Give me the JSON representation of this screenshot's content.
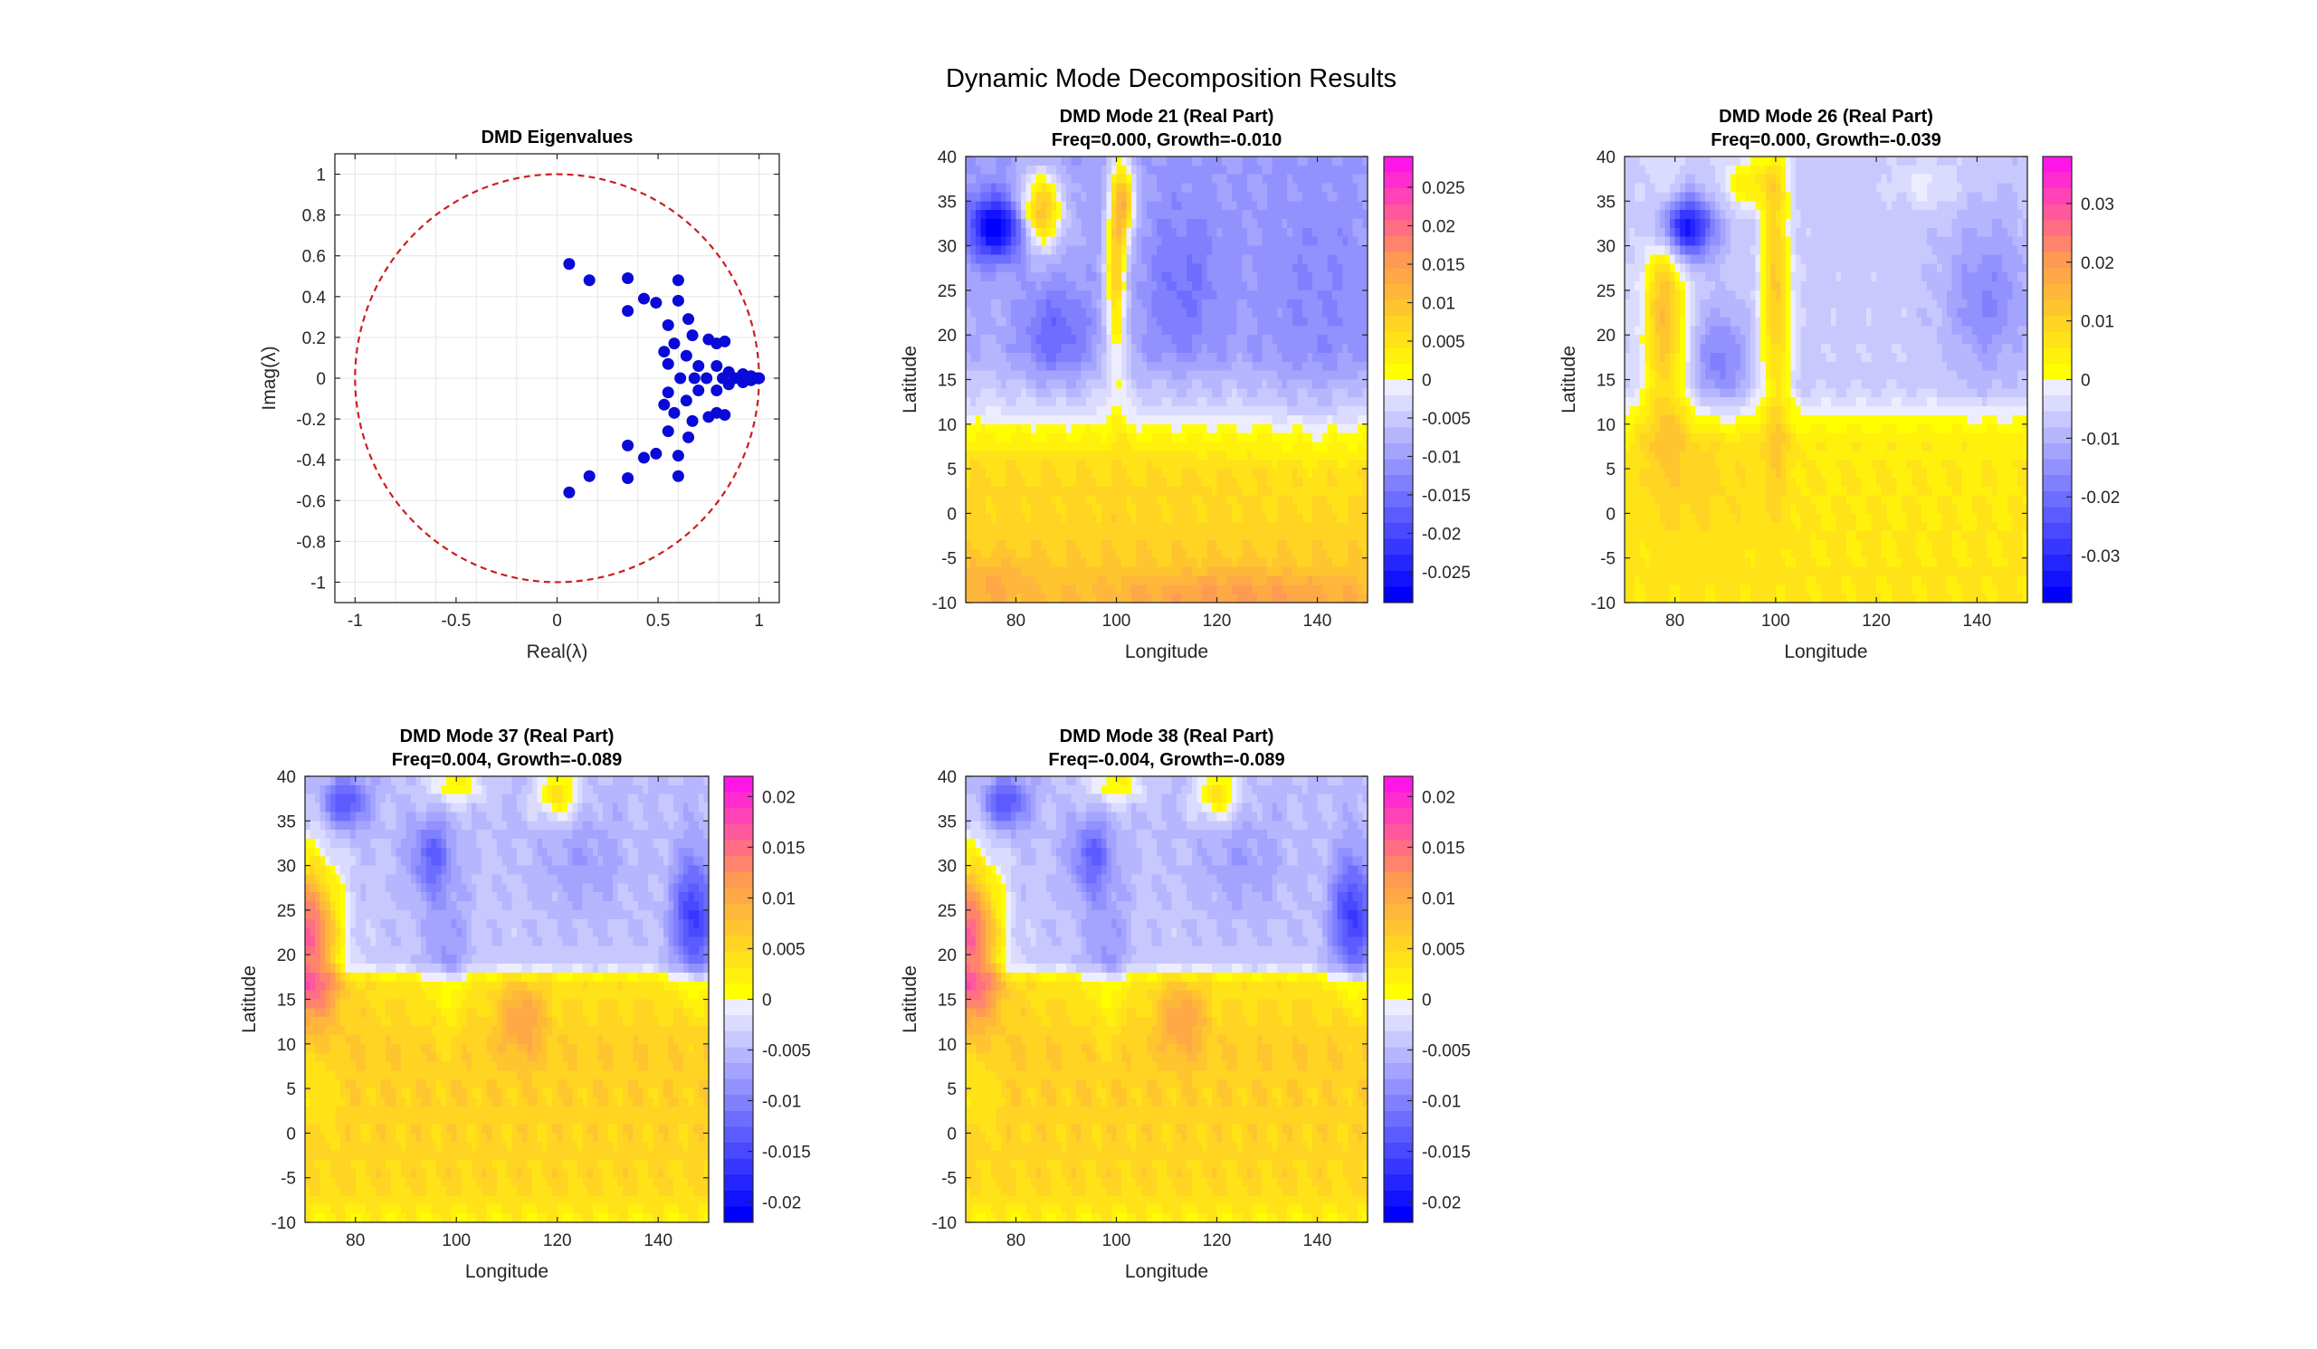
{
  "figure": {
    "suptitle": "Dynamic Mode Decomposition Results"
  },
  "colors": {
    "marker": "#0a0ad8",
    "unit_circle": "#cc1f1f",
    "cmap_neg_end": "#0000ff",
    "cmap_zero": "#ffffff",
    "cmap_pos_start": "#ffff00",
    "cmap_pos_mid": "#ff9a52",
    "cmap_pos_end": "#ff00ff"
  },
  "chart_data": [
    {
      "type": "scatter",
      "title": "DMD Eigenvalues",
      "xlabel": "Real(λ)",
      "ylabel": "Imag(λ)",
      "xlim": [
        -1.1,
        1.1
      ],
      "ylim": [
        -1.1,
        1.1
      ],
      "xticks": [
        -1,
        -0.5,
        0,
        0.5,
        1
      ],
      "yticks": [
        -1,
        -0.8,
        -0.6,
        -0.4,
        -0.2,
        0,
        0.2,
        0.4,
        0.6,
        0.8,
        1
      ],
      "grid": true,
      "unit_circle": true,
      "points": [
        [
          0.06,
          0.56
        ],
        [
          0.06,
          -0.56
        ],
        [
          0.16,
          0.48
        ],
        [
          0.16,
          -0.48
        ],
        [
          0.35,
          0.49
        ],
        [
          0.35,
          -0.49
        ],
        [
          0.35,
          0.33
        ],
        [
          0.35,
          -0.33
        ],
        [
          0.43,
          0.39
        ],
        [
          0.43,
          -0.39
        ],
        [
          0.49,
          0.37
        ],
        [
          0.49,
          -0.37
        ],
        [
          0.6,
          0.48
        ],
        [
          0.6,
          -0.48
        ],
        [
          0.6,
          0.38
        ],
        [
          0.6,
          -0.38
        ],
        [
          0.55,
          0.26
        ],
        [
          0.55,
          -0.26
        ],
        [
          0.65,
          0.29
        ],
        [
          0.65,
          -0.29
        ],
        [
          0.58,
          0.17
        ],
        [
          0.58,
          -0.17
        ],
        [
          0.67,
          0.21
        ],
        [
          0.67,
          -0.21
        ],
        [
          0.53,
          0.13
        ],
        [
          0.53,
          -0.13
        ],
        [
          0.64,
          0.11
        ],
        [
          0.64,
          -0.11
        ],
        [
          0.55,
          0.07
        ],
        [
          0.55,
          -0.07
        ],
        [
          0.7,
          0.06
        ],
        [
          0.7,
          -0.06
        ],
        [
          0.75,
          0.19
        ],
        [
          0.75,
          -0.19
        ],
        [
          0.79,
          0.17
        ],
        [
          0.79,
          -0.17
        ],
        [
          0.83,
          0.18
        ],
        [
          0.83,
          -0.18
        ],
        [
          0.79,
          0.06
        ],
        [
          0.79,
          -0.06
        ],
        [
          0.85,
          0.03
        ],
        [
          0.85,
          -0.03
        ],
        [
          0.92,
          0.02
        ],
        [
          0.92,
          -0.02
        ],
        [
          0.96,
          0.01
        ],
        [
          0.96,
          -0.01
        ],
        [
          0.61,
          0.0
        ],
        [
          0.68,
          0.0
        ],
        [
          0.74,
          0.0
        ],
        [
          0.82,
          0.0
        ],
        [
          0.88,
          0.0
        ],
        [
          0.95,
          0.0
        ],
        [
          0.99,
          0.0
        ],
        [
          1.0,
          0.0
        ]
      ]
    },
    {
      "type": "heatmap",
      "title_line1": "DMD Mode 21 (Real Part)",
      "title_line2": "Freq=0.000, Growth=-0.010",
      "xlabel": "Longitude",
      "ylabel": "Latitude",
      "xlim": [
        70,
        150
      ],
      "ylim": [
        -10,
        40
      ],
      "xticks": [
        80,
        100,
        120,
        140
      ],
      "yticks": [
        -10,
        -5,
        0,
        5,
        10,
        15,
        20,
        25,
        30,
        35,
        40
      ],
      "clim": [
        -0.029,
        0.029
      ],
      "cticks": [
        -0.025,
        -0.02,
        -0.015,
        -0.01,
        -0.005,
        0,
        0.005,
        0.01,
        0.015,
        0.02,
        0.025
      ],
      "cticklabels": [
        "-0.025",
        "-0.02",
        "-0.015",
        "-0.01",
        "-0.005",
        "0",
        "0.005",
        "0.01",
        "0.015",
        "0.02",
        "0.025"
      ],
      "field": {
        "base": [
          {
            "lat": -10,
            "v": 0.009
          },
          {
            "lat": 5,
            "v": 0.006
          },
          {
            "lat": 9,
            "v": 0.002
          },
          {
            "lat": 12,
            "v": -0.003
          },
          {
            "lat": 18,
            "v": -0.008
          },
          {
            "lat": 40,
            "v": -0.01
          }
        ],
        "blobs": [
          {
            "lon": 76,
            "lat": 32,
            "sx": 4,
            "sy": 2.5,
            "a": -0.02
          },
          {
            "lon": 88,
            "lat": 20,
            "sx": 5,
            "sy": 4,
            "a": -0.008
          },
          {
            "lon": 113,
            "lat": 25,
            "sx": 6,
            "sy": 7,
            "a": -0.006
          },
          {
            "lon": 140,
            "lat": 22,
            "sx": 10,
            "sy": 10,
            "a": -0.004
          },
          {
            "lon": 85,
            "lat": 34,
            "sx": 3,
            "sy": 3,
            "a": 0.02
          },
          {
            "lon": 100,
            "lat": 28,
            "sx": 1.5,
            "sy": 9,
            "a": 0.017
          },
          {
            "lon": 102,
            "lat": 35,
            "sx": 1.5,
            "sy": 3,
            "a": 0.015
          },
          {
            "lon": 125,
            "lat": -9,
            "sx": 20,
            "sy": 1.8,
            "a": 0.006
          },
          {
            "lon": 75,
            "lat": -8,
            "sx": 6,
            "sy": 2,
            "a": 0.004
          }
        ]
      }
    },
    {
      "type": "heatmap",
      "title_line1": "DMD Mode 26 (Real Part)",
      "title_line2": "Freq=0.000, Growth=-0.039",
      "xlabel": "Longitude",
      "ylabel": "Latitude",
      "xlim": [
        70,
        150
      ],
      "ylim": [
        -10,
        40
      ],
      "xticks": [
        80,
        100,
        120,
        140
      ],
      "yticks": [
        -10,
        -5,
        0,
        5,
        10,
        15,
        20,
        25,
        30,
        35,
        40
      ],
      "clim": [
        -0.038,
        0.038
      ],
      "cticks": [
        -0.03,
        -0.02,
        -0.01,
        0,
        0.01,
        0.02,
        0.03
      ],
      "cticklabels": [
        "-0.03",
        "-0.02",
        "-0.01",
        "0",
        "0.01",
        "0.02",
        "0.03"
      ],
      "field": {
        "base": [
          {
            "lat": -10,
            "v": 0.006
          },
          {
            "lat": 8,
            "v": 0.005
          },
          {
            "lat": 11,
            "v": 0.0
          },
          {
            "lat": 14,
            "v": -0.006
          },
          {
            "lat": 40,
            "v": -0.007
          }
        ],
        "blobs": [
          {
            "lon": 82,
            "lat": 32,
            "sx": 4,
            "sy": 2.5,
            "a": -0.03
          },
          {
            "lon": 89,
            "lat": 17,
            "sx": 4,
            "sy": 4,
            "a": -0.012
          },
          {
            "lon": 142,
            "lat": 24,
            "sx": 6,
            "sy": 6,
            "a": -0.01
          },
          {
            "lon": 78,
            "lat": 22,
            "sx": 3,
            "sy": 9,
            "a": 0.02
          },
          {
            "lon": 100,
            "lat": 25,
            "sx": 2,
            "sy": 12,
            "a": 0.018
          },
          {
            "lon": 95,
            "lat": 37,
            "sx": 4,
            "sy": 2,
            "a": 0.012
          },
          {
            "lon": 85,
            "lat": 5,
            "sx": 8,
            "sy": 6,
            "a": 0.004
          },
          {
            "lon": 130,
            "lat": 37,
            "sx": 5,
            "sy": 2,
            "a": 0.005
          }
        ]
      }
    },
    {
      "type": "heatmap",
      "title_line1": "DMD Mode 37 (Real Part)",
      "title_line2": "Freq=0.004, Growth=-0.089",
      "xlabel": "Longitude",
      "ylabel": "Latitude",
      "xlim": [
        70,
        150
      ],
      "ylim": [
        -10,
        40
      ],
      "xticks": [
        80,
        100,
        120,
        140
      ],
      "yticks": [
        -10,
        -5,
        0,
        5,
        10,
        15,
        20,
        25,
        30,
        35,
        40
      ],
      "clim": [
        -0.022,
        0.022
      ],
      "cticks": [
        -0.02,
        -0.015,
        -0.01,
        -0.005,
        0,
        0.005,
        0.01,
        0.015,
        0.02
      ],
      "cticklabels": [
        "-0.02",
        "-0.015",
        "-0.01",
        "-0.005",
        "0",
        "0.005",
        "0.01",
        "0.015",
        "0.02"
      ],
      "field": {
        "base": [
          {
            "lat": -10,
            "v": 0.002
          },
          {
            "lat": -6,
            "v": 0.005
          },
          {
            "lat": 10,
            "v": 0.006
          },
          {
            "lat": 17,
            "v": 0.004
          },
          {
            "lat": 19,
            "v": -0.004
          },
          {
            "lat": 40,
            "v": -0.005
          }
        ],
        "blobs": [
          {
            "lon": 71,
            "lat": 22,
            "sx": 4,
            "sy": 6,
            "a": 0.02
          },
          {
            "lon": 113,
            "lat": 13,
            "sx": 3,
            "sy": 3,
            "a": 0.006
          },
          {
            "lon": 147,
            "lat": 24,
            "sx": 3,
            "sy": 5,
            "a": -0.012
          },
          {
            "lon": 95,
            "lat": 31,
            "sx": 3,
            "sy": 3,
            "a": -0.008
          },
          {
            "lon": 78,
            "lat": 37,
            "sx": 3,
            "sy": 2,
            "a": -0.01
          },
          {
            "lon": 98,
            "lat": 20,
            "sx": 3,
            "sy": 6,
            "a": -0.004
          },
          {
            "lon": 125,
            "lat": 30,
            "sx": 6,
            "sy": 4,
            "a": -0.003
          },
          {
            "lon": 72,
            "lat": 6,
            "sx": 3,
            "sy": 4,
            "a": -0.003
          },
          {
            "lon": 120,
            "lat": 38,
            "sx": 3,
            "sy": 2,
            "a": 0.009
          },
          {
            "lon": 100,
            "lat": 39,
            "sx": 4,
            "sy": 1.5,
            "a": 0.007
          }
        ]
      }
    },
    {
      "type": "heatmap",
      "title_line1": "DMD Mode 38 (Real Part)",
      "title_line2": "Freq=-0.004, Growth=-0.089",
      "xlabel": "Longitude",
      "ylabel": "Latitude",
      "xlim": [
        70,
        150
      ],
      "ylim": [
        -10,
        40
      ],
      "xticks": [
        80,
        100,
        120,
        140
      ],
      "yticks": [
        -10,
        -5,
        0,
        5,
        10,
        15,
        20,
        25,
        30,
        35,
        40
      ],
      "clim": [
        -0.022,
        0.022
      ],
      "cticks": [
        -0.02,
        -0.015,
        -0.01,
        -0.005,
        0,
        0.005,
        0.01,
        0.015,
        0.02
      ],
      "cticklabels": [
        "-0.02",
        "-0.015",
        "-0.01",
        "-0.005",
        "0",
        "0.005",
        "0.01",
        "0.015",
        "0.02"
      ],
      "field": {
        "base": [
          {
            "lat": -10,
            "v": 0.002
          },
          {
            "lat": -6,
            "v": 0.005
          },
          {
            "lat": 10,
            "v": 0.006
          },
          {
            "lat": 17,
            "v": 0.004
          },
          {
            "lat": 19,
            "v": -0.004
          },
          {
            "lat": 40,
            "v": -0.005
          }
        ],
        "blobs": [
          {
            "lon": 71,
            "lat": 22,
            "sx": 4,
            "sy": 6,
            "a": 0.02
          },
          {
            "lon": 113,
            "lat": 13,
            "sx": 3,
            "sy": 3,
            "a": 0.006
          },
          {
            "lon": 147,
            "lat": 24,
            "sx": 3,
            "sy": 5,
            "a": -0.012
          },
          {
            "lon": 95,
            "lat": 31,
            "sx": 3,
            "sy": 3,
            "a": -0.008
          },
          {
            "lon": 78,
            "lat": 37,
            "sx": 3,
            "sy": 2,
            "a": -0.01
          },
          {
            "lon": 98,
            "lat": 20,
            "sx": 3,
            "sy": 6,
            "a": -0.004
          },
          {
            "lon": 125,
            "lat": 30,
            "sx": 6,
            "sy": 4,
            "a": -0.003
          },
          {
            "lon": 72,
            "lat": 6,
            "sx": 3,
            "sy": 4,
            "a": -0.003
          },
          {
            "lon": 120,
            "lat": 38,
            "sx": 3,
            "sy": 2,
            "a": 0.009
          },
          {
            "lon": 100,
            "lat": 39,
            "sx": 4,
            "sy": 1.5,
            "a": 0.007
          }
        ]
      }
    }
  ]
}
